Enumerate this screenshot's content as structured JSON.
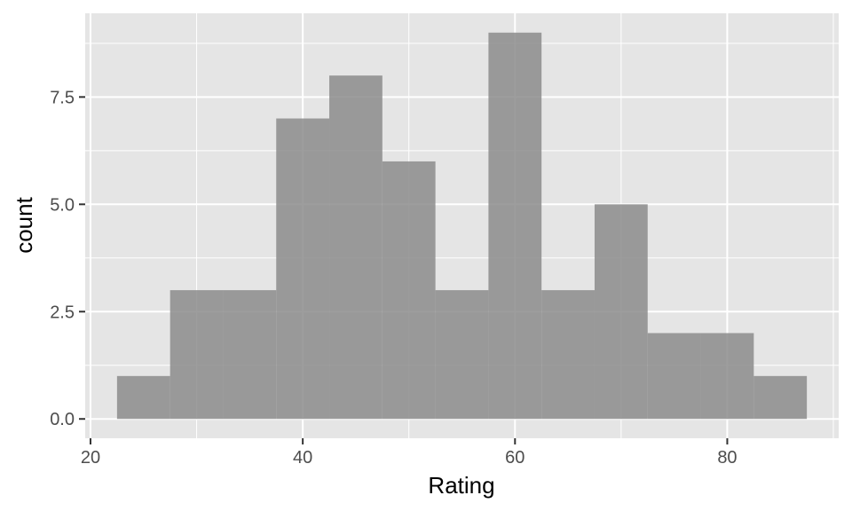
{
  "chart_data": {
    "type": "bar",
    "subtype": "histogram",
    "title": "",
    "xlabel": "Rating",
    "ylabel": "count",
    "xlim": [
      19.5,
      90.5
    ],
    "ylim": [
      -0.45,
      9.45
    ],
    "x_ticks": [
      20,
      40,
      60,
      80
    ],
    "x_tick_labels": [
      "20",
      "40",
      "60",
      "80"
    ],
    "y_ticks": [
      0,
      2.5,
      5,
      7.5
    ],
    "y_tick_labels": [
      "0.0",
      "2.5",
      "5.0",
      "7.5"
    ],
    "bins": [
      {
        "x0": 22.5,
        "x1": 27.5,
        "count": 1
      },
      {
        "x0": 27.5,
        "x1": 32.5,
        "count": 3
      },
      {
        "x0": 32.5,
        "x1": 37.5,
        "count": 3
      },
      {
        "x0": 37.5,
        "x1": 42.5,
        "count": 7
      },
      {
        "x0": 42.5,
        "x1": 47.5,
        "count": 8
      },
      {
        "x0": 47.5,
        "x1": 52.5,
        "count": 6
      },
      {
        "x0": 52.5,
        "x1": 57.5,
        "count": 3
      },
      {
        "x0": 57.5,
        "x1": 62.5,
        "count": 9
      },
      {
        "x0": 62.5,
        "x1": 67.5,
        "count": 3
      },
      {
        "x0": 67.5,
        "x1": 72.5,
        "count": 5
      },
      {
        "x0": 72.5,
        "x1": 77.5,
        "count": 2
      },
      {
        "x0": 77.5,
        "x1": 82.5,
        "count": 2
      },
      {
        "x0": 82.5,
        "x1": 87.5,
        "count": 1
      }
    ],
    "grid": true,
    "colors": {
      "panel_background": "#e5e5e5",
      "grid_line": "#ffffff",
      "bar_fill": "#8c8c8c",
      "axis_tick": "#333333"
    }
  }
}
